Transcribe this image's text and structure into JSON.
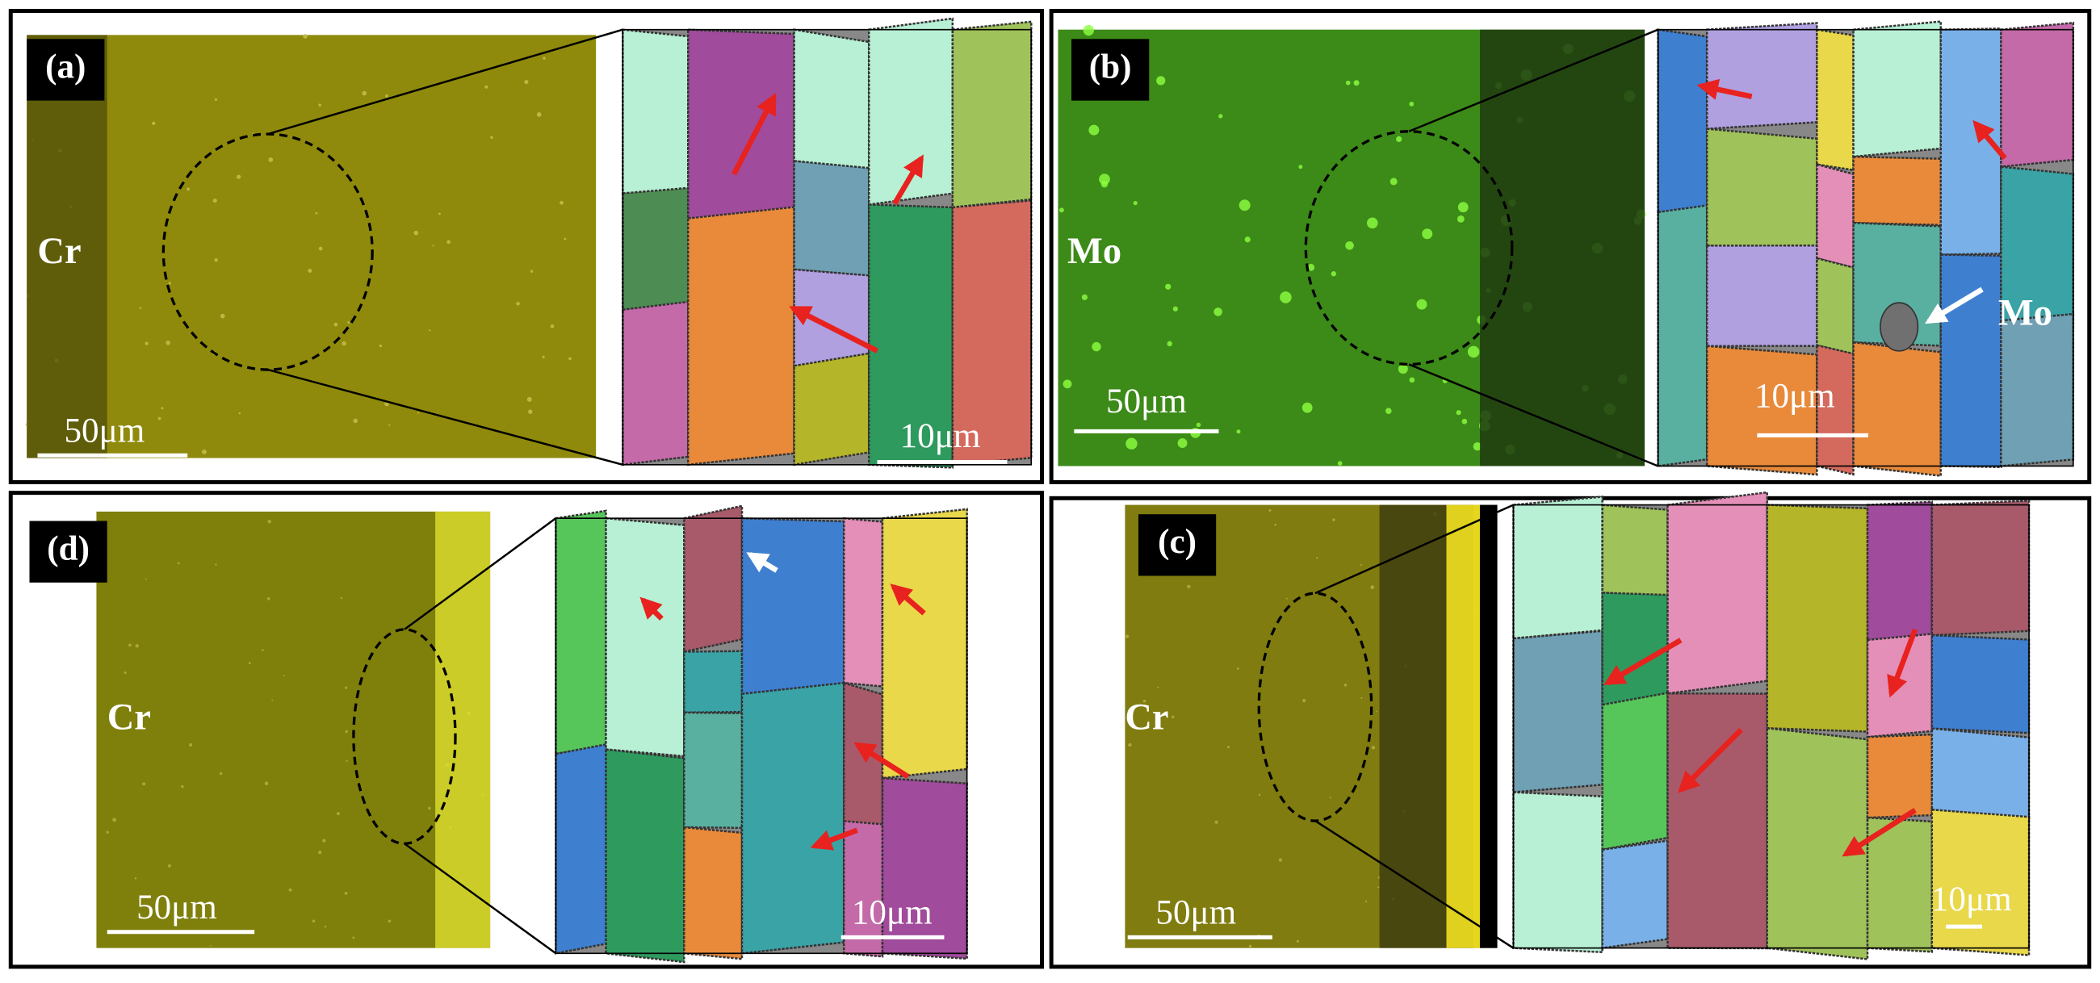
{
  "panels": [
    {
      "label": "(a)",
      "element": "Cr",
      "scale_sem": "50μm",
      "scale_ebsd": "10μm"
    },
    {
      "label": "(b)",
      "element": "Mo",
      "scale_sem": "50μm",
      "scale_ebsd": "10μm",
      "element_ebsd": "Mo"
    },
    {
      "label": "(d)",
      "element": "Cr",
      "scale_sem": "50μm",
      "scale_ebsd": "10μm"
    },
    {
      "label": "(c)",
      "element": "Cr",
      "scale_sem": "50μm",
      "scale_ebsd": "10μm"
    }
  ]
}
